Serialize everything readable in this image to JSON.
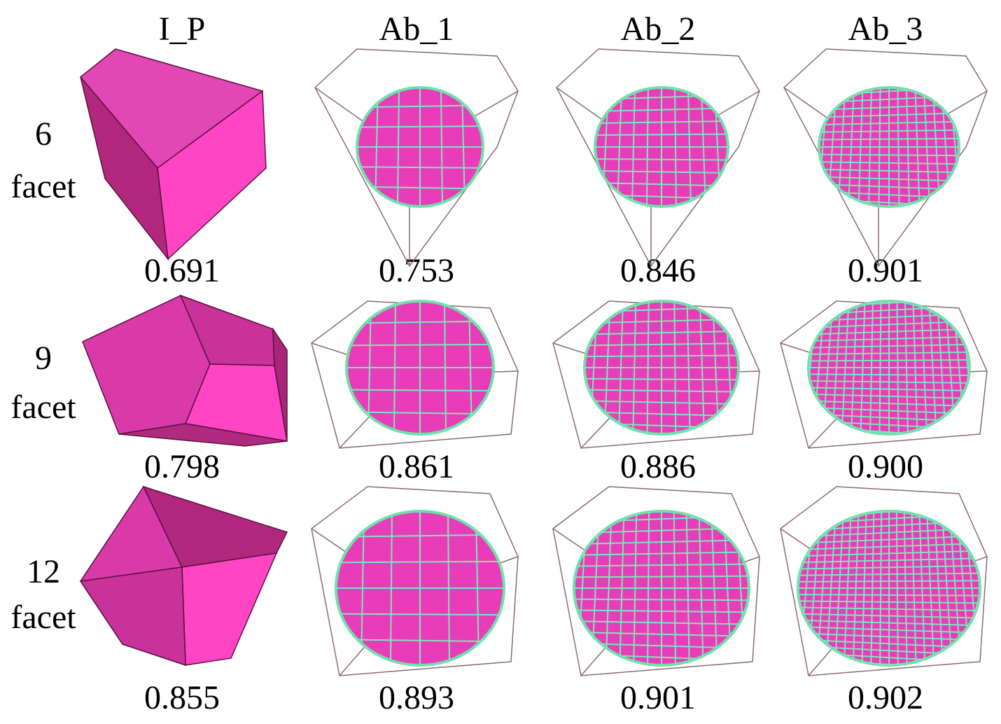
{
  "columns": [
    "I_P",
    "Ab_1",
    "Ab_2",
    "Ab_3"
  ],
  "rows": [
    {
      "facets": "6",
      "unit": "facet",
      "scores": [
        "0.691",
        "0.753",
        "0.846",
        "0.901"
      ]
    },
    {
      "facets": "9",
      "unit": "facet",
      "scores": [
        "0.798",
        "0.861",
        "0.886",
        "0.900"
      ]
    },
    {
      "facets": "12",
      "unit": "facet",
      "scores": [
        "0.855",
        "0.893",
        "0.901",
        "0.902"
      ]
    }
  ]
}
